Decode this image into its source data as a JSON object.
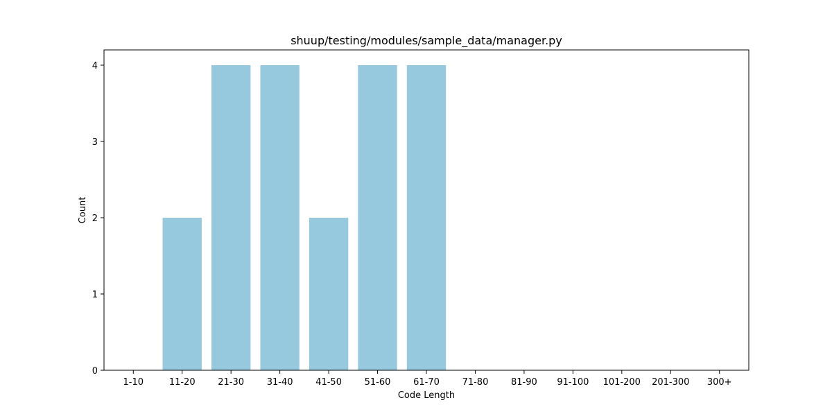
{
  "chart_data": {
    "type": "bar",
    "title": "shuup/testing/modules/sample_data/manager.py",
    "xlabel": "Code Length",
    "ylabel": "Count",
    "categories": [
      "1-10",
      "11-20",
      "21-30",
      "31-40",
      "41-50",
      "51-60",
      "61-70",
      "71-80",
      "81-90",
      "91-100",
      "101-200",
      "201-300",
      "300+"
    ],
    "values": [
      0,
      2,
      4,
      4,
      2,
      4,
      4,
      0,
      0,
      0,
      0,
      0,
      0
    ],
    "ylim": [
      0,
      4.2
    ],
    "yticks": [
      0,
      1,
      2,
      3,
      4
    ],
    "bar_color": "#96c9dd",
    "grid": false,
    "legend": "none"
  }
}
